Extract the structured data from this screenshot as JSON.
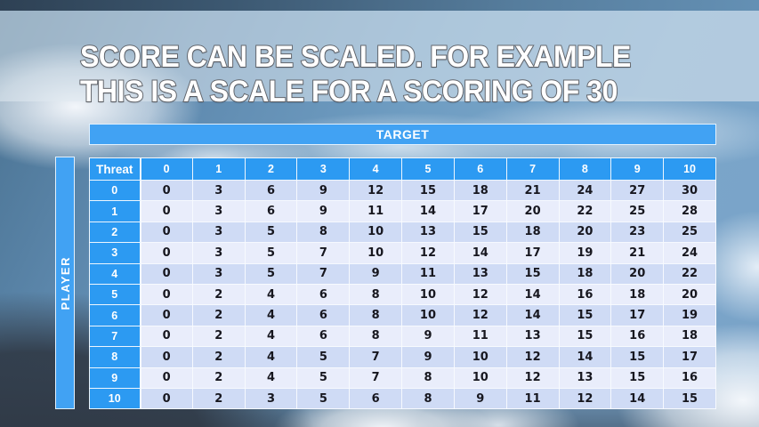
{
  "title": {
    "line1": "SCORE CAN BE SCALED. FOR EXAMPLE",
    "line2": "THIS IS A SCALE FOR A SCORING OF 30"
  },
  "table": {
    "target_label": "TARGET",
    "player_label": "PLAYER",
    "corner_label": "Threat",
    "col_headers": [
      "0",
      "1",
      "2",
      "3",
      "4",
      "5",
      "6",
      "7",
      "8",
      "9",
      "10"
    ],
    "row_headers": [
      "0",
      "1",
      "2",
      "3",
      "4",
      "5",
      "6",
      "7",
      "8",
      "9",
      "10"
    ],
    "rows": [
      [
        0,
        3,
        6,
        9,
        12,
        15,
        18,
        21,
        24,
        27,
        30
      ],
      [
        0,
        3,
        6,
        9,
        11,
        14,
        17,
        20,
        22,
        25,
        28
      ],
      [
        0,
        3,
        5,
        8,
        10,
        13,
        15,
        18,
        20,
        23,
        25
      ],
      [
        0,
        3,
        5,
        7,
        10,
        12,
        14,
        17,
        19,
        21,
        24
      ],
      [
        0,
        3,
        5,
        7,
        9,
        11,
        13,
        15,
        18,
        20,
        22
      ],
      [
        0,
        2,
        4,
        6,
        8,
        10,
        12,
        14,
        16,
        18,
        20
      ],
      [
        0,
        2,
        4,
        6,
        8,
        10,
        12,
        14,
        15,
        17,
        19
      ],
      [
        0,
        2,
        4,
        6,
        8,
        9,
        11,
        13,
        15,
        16,
        18
      ],
      [
        0,
        2,
        4,
        5,
        7,
        9,
        10,
        12,
        14,
        15,
        17
      ],
      [
        0,
        2,
        4,
        5,
        7,
        8,
        10,
        12,
        13,
        15,
        16
      ],
      [
        0,
        2,
        3,
        5,
        6,
        8,
        9,
        11,
        12,
        14,
        15
      ]
    ]
  },
  "colors": {
    "header_blue": "#2c9af2",
    "bar_blue": "#41a2f3",
    "row_even": "#cfdbf5",
    "row_odd": "#e9edfb",
    "grid_white": "#f8fbfe",
    "title_fill": "#ffffff",
    "title_outline": "#64676d"
  }
}
